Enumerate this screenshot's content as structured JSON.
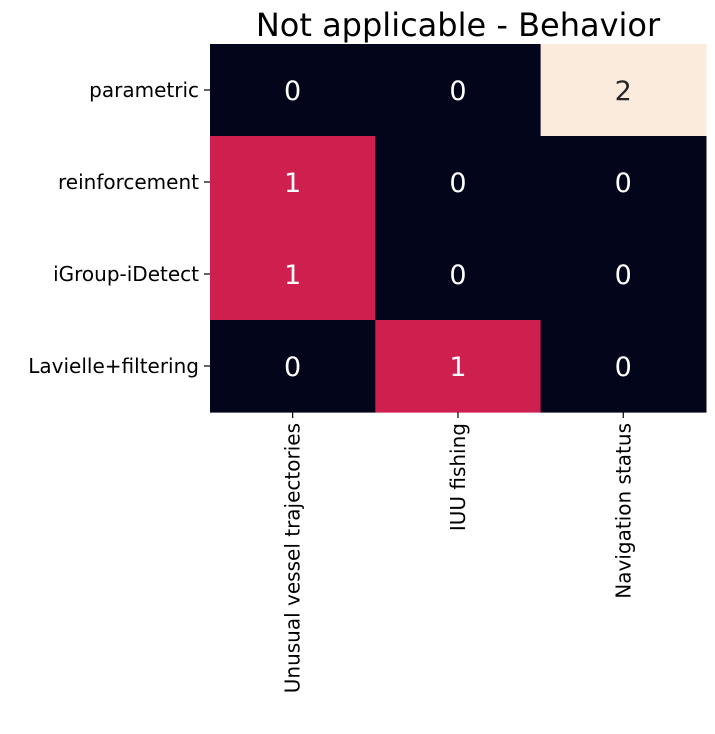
{
  "chart_data": {
    "type": "heatmap",
    "title": "Not applicable - Behavior",
    "xlabel": "",
    "ylabel": "",
    "rows": [
      "parametric",
      "reinforcement",
      "iGroup-iDetect",
      "Lavielle+filtering"
    ],
    "columns": [
      "Unusual vessel trajectories",
      "IUU fishing",
      "Navigation status"
    ],
    "values": [
      [
        0,
        0,
        2
      ],
      [
        1,
        0,
        0
      ],
      [
        1,
        0,
        0
      ],
      [
        0,
        1,
        0
      ]
    ],
    "colorbar": false,
    "colors": {
      "0": "#03051a",
      "1": "#cf1f4f",
      "2": "#faebdd"
    },
    "text_colors": {
      "dark": "#ffffff",
      "light": "#262626"
    }
  }
}
